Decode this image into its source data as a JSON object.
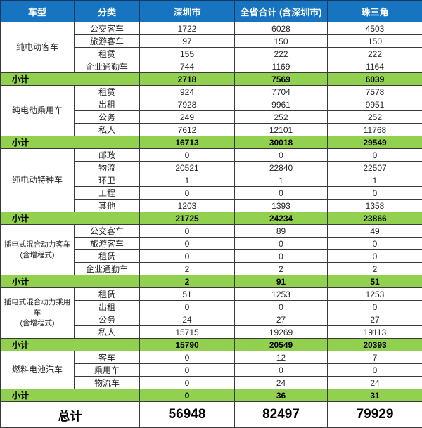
{
  "colors": {
    "header_bg": "#1774C1",
    "header_text": "#FFFFFF",
    "subtotal_bg": "#92D050",
    "border": "#3A3A3A",
    "text": "#262626"
  },
  "chart_data": {
    "type": "table",
    "columns": [
      "车型",
      "分类",
      "深圳市",
      "全省合计 (含深圳市)",
      "珠三角"
    ],
    "subtotal_label": "小计",
    "groups": [
      {
        "type": "纯电动客车",
        "rows": [
          {
            "category": "公交客车",
            "values": [
              1722,
              6028,
              4503
            ]
          },
          {
            "category": "旅游客车",
            "values": [
              97,
              150,
              150
            ]
          },
          {
            "category": "租赁",
            "values": [
              155,
              222,
              222
            ]
          },
          {
            "category": "企业通勤车",
            "values": [
              744,
              1169,
              1164
            ]
          }
        ],
        "subtotal": [
          2718,
          7569,
          6039
        ]
      },
      {
        "type": "纯电动乘用车",
        "rows": [
          {
            "category": "租赁",
            "values": [
              924,
              7704,
              7578
            ]
          },
          {
            "category": "出租",
            "values": [
              7928,
              9961,
              9951
            ]
          },
          {
            "category": "公务",
            "values": [
              249,
              252,
              252
            ]
          },
          {
            "category": "私人",
            "values": [
              7612,
              12101,
              11768
            ]
          }
        ],
        "subtotal": [
          16713,
          30018,
          29549
        ]
      },
      {
        "type": "纯电动特种车",
        "rows": [
          {
            "category": "邮政",
            "values": [
              0,
              0,
              0
            ]
          },
          {
            "category": "物流",
            "values": [
              20521,
              22840,
              22507
            ]
          },
          {
            "category": "环卫",
            "values": [
              1,
              1,
              1
            ]
          },
          {
            "category": "工程",
            "values": [
              0,
              0,
              0
            ]
          },
          {
            "category": "其他",
            "values": [
              1203,
              1393,
              1358
            ]
          }
        ],
        "subtotal": [
          21725,
          24234,
          23866
        ]
      },
      {
        "type": "插电式混合动力客车\n(含增程式)",
        "rows": [
          {
            "category": "公交客车",
            "values": [
              0,
              89,
              49
            ]
          },
          {
            "category": "旅游客车",
            "values": [
              0,
              0,
              0
            ]
          },
          {
            "category": "租赁",
            "values": [
              0,
              0,
              0
            ]
          },
          {
            "category": "企业通勤车",
            "values": [
              2,
              2,
              2
            ]
          }
        ],
        "subtotal": [
          2,
          91,
          51
        ]
      },
      {
        "type": "插电式混合动力乘用车\n(含增程式)",
        "rows": [
          {
            "category": "租赁",
            "values": [
              51,
              1253,
              1253
            ]
          },
          {
            "category": "出租",
            "values": [
              0,
              0,
              0
            ]
          },
          {
            "category": "公务",
            "values": [
              24,
              27,
              27
            ]
          },
          {
            "category": "私人",
            "values": [
              15715,
              19269,
              19113
            ]
          }
        ],
        "subtotal": [
          15790,
          20549,
          20393
        ]
      },
      {
        "type": "燃料电池汽车",
        "rows": [
          {
            "category": "客车",
            "values": [
              0,
              12,
              7
            ]
          },
          {
            "category": "乘用车",
            "values": [
              0,
              0,
              0
            ]
          },
          {
            "category": "物流车",
            "values": [
              0,
              24,
              24
            ]
          }
        ],
        "subtotal": [
          0,
          36,
          31
        ]
      }
    ],
    "total": {
      "label": "总计",
      "values": [
        56948,
        82497,
        79929
      ]
    }
  }
}
